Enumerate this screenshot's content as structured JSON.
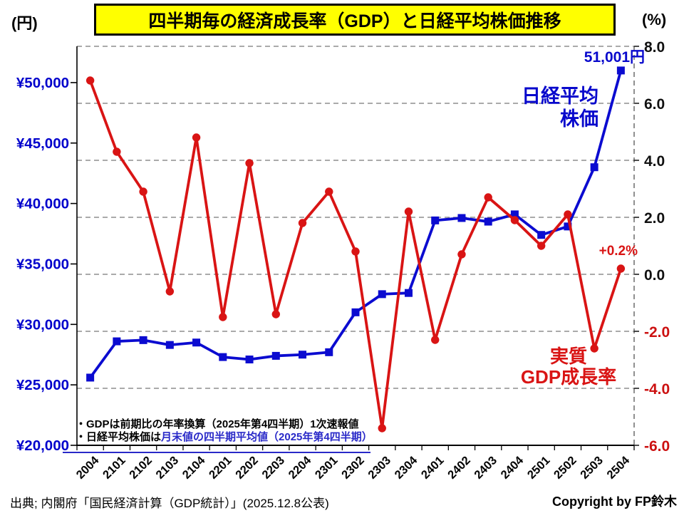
{
  "header": {
    "left_unit": "(円)",
    "title": "四半期毎の経済成長率（GDP）と日経平均株価推移",
    "right_unit": "(%)"
  },
  "chart_data": {
    "type": "line",
    "categories": [
      "2004",
      "2101",
      "2102",
      "2103",
      "2104",
      "2201",
      "2202",
      "2203",
      "2204",
      "2301",
      "2302",
      "2303",
      "2304",
      "2401",
      "2402",
      "2403",
      "2404",
      "2501",
      "2502",
      "2503",
      "2504"
    ],
    "series": [
      {
        "name": "日経平均株価",
        "axis": "left",
        "unit": "円",
        "color": "#0b0bd0",
        "marker": "square",
        "values": [
          25600,
          28600,
          28700,
          28300,
          28500,
          27300,
          27100,
          27400,
          27500,
          27700,
          31000,
          32500,
          32600,
          38600,
          38800,
          38500,
          39100,
          37400,
          38100,
          43000,
          51001
        ]
      },
      {
        "name": "実質GDP成長率",
        "axis": "right",
        "unit": "%",
        "color": "#d91414",
        "marker": "circle",
        "values": [
          6.8,
          4.3,
          2.9,
          -0.6,
          4.8,
          -1.5,
          3.9,
          -1.4,
          1.8,
          2.9,
          0.8,
          -5.4,
          2.2,
          -2.3,
          0.7,
          2.7,
          1.9,
          1.0,
          2.1,
          -2.6,
          0.2
        ]
      }
    ],
    "left_axis": {
      "labels": [
        "¥50,000",
        "¥45,000",
        "¥40,000",
        "¥35,000",
        "¥30,000",
        "¥25,000",
        "¥20,000"
      ],
      "tick_values": [
        50000,
        45000,
        40000,
        35000,
        30000,
        25000,
        20000
      ],
      "min": 20000,
      "max": 53000,
      "color": "#0000cc"
    },
    "right_axis": {
      "labels": [
        "8.0",
        "6.0",
        "4.0",
        "2.0",
        "0.0",
        "-2.0",
        "-4.0",
        "-6.0"
      ],
      "tick_values": [
        8,
        6,
        4,
        2,
        0,
        -2,
        -4,
        -6
      ],
      "grid_values": [
        8,
        6,
        4,
        2,
        0,
        -2,
        -4
      ],
      "min": -6,
      "max": 8,
      "positive_color": "#111111",
      "negative_color": "#cc1111"
    },
    "grid": "horizontal dashed lines every 2.0%",
    "legend": {
      "nikkei_line1": "日経平均",
      "nikkei_line2": "株価",
      "gdp_line1": "実質",
      "gdp_line2": "GDP成長率"
    },
    "annotations": {
      "nikkei_last": "51,001円",
      "gdp_last": "+0.2%"
    }
  },
  "footnotes": {
    "line1": "・GDPは前期比の年率換算（2025年第4四半期）1次速報値",
    "line2_black": "・日経平均株価は",
    "line2_blue": "月末値の四半期平均値（2025年第4四半期）"
  },
  "footer": {
    "source": "出典; 内閣府「国民経済計算（GDP統計）」(2025.12.8公表)",
    "copyright": "Copyright by FP鈴木"
  }
}
